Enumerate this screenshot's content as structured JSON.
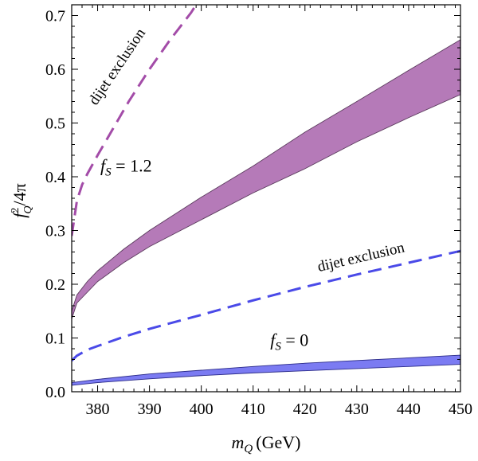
{
  "chart_data": {
    "type": "area",
    "xlabel_var": "m",
    "xlabel_sub": "Q",
    "xlabel_unit": "(GeV)",
    "ylabel_num": "f",
    "ylabel_sup": "2",
    "ylabel_sub": "Q",
    "ylabel_den": "/4π",
    "xlim": [
      375,
      450
    ],
    "ylim": [
      0,
      0.72
    ],
    "xticks": [
      380,
      390,
      400,
      410,
      420,
      430,
      440,
      450
    ],
    "yticks": [
      0.0,
      0.1,
      0.2,
      0.3,
      0.4,
      0.5,
      0.6,
      0.7
    ],
    "ytick_labels": [
      "0.0",
      "0.1",
      "0.2",
      "0.3",
      "0.4",
      "0.5",
      "0.6",
      "0.7"
    ],
    "series": [
      {
        "name": "fS = 1.2 band",
        "kind": "band",
        "fill": "#b57ab8",
        "stroke": "#5a3a5c",
        "x": [
          375,
          376,
          378,
          380,
          385,
          390,
          400,
          410,
          420,
          430,
          440,
          450
        ],
        "lower": [
          0.135,
          0.165,
          0.185,
          0.205,
          0.24,
          0.27,
          0.32,
          0.37,
          0.415,
          0.465,
          0.51,
          0.553
        ],
        "upper": [
          0.15,
          0.18,
          0.205,
          0.225,
          0.265,
          0.3,
          0.362,
          0.42,
          0.483,
          0.54,
          0.598,
          0.655
        ]
      },
      {
        "name": "fS = 0 band",
        "kind": "band",
        "fill": "#7b7bf2",
        "stroke": "#2a2a88",
        "x": [
          375,
          380,
          390,
          400,
          410,
          420,
          430,
          440,
          450
        ],
        "lower": [
          0.012,
          0.017,
          0.024,
          0.03,
          0.035,
          0.039,
          0.043,
          0.047,
          0.051
        ],
        "upper": [
          0.017,
          0.023,
          0.033,
          0.04,
          0.047,
          0.053,
          0.058,
          0.063,
          0.068
        ]
      },
      {
        "name": "dijet exclusion (fS = 1.2)",
        "kind": "dashed",
        "color": "#a34ca8",
        "x": [
          375,
          376,
          377,
          378,
          380,
          383,
          386,
          390,
          394,
          398,
          399
        ],
        "y": [
          0.29,
          0.355,
          0.385,
          0.405,
          0.44,
          0.49,
          0.54,
          0.6,
          0.655,
          0.705,
          0.72
        ]
      },
      {
        "name": "dijet exclusion (fS = 0)",
        "kind": "dashed",
        "color": "#4a4ae8",
        "x": [
          375,
          376,
          378,
          380,
          385,
          390,
          400,
          410,
          420,
          430,
          440,
          450
        ],
        "y": [
          0.058,
          0.067,
          0.078,
          0.085,
          0.102,
          0.117,
          0.143,
          0.17,
          0.195,
          0.218,
          0.24,
          0.262
        ]
      }
    ],
    "annotations": [
      {
        "id": "dijet_upper",
        "text": "dijet exclusion",
        "x": 384.5,
        "y": 0.6,
        "angle": -56,
        "size": "small"
      },
      {
        "id": "dijet_lower",
        "text": "dijet exclusion",
        "x": 431,
        "y": 0.242,
        "angle": -13,
        "size": "small"
      },
      {
        "id": "fs12",
        "prefix": "f",
        "sub": "S",
        "rest": " = 1.2",
        "x": 385.5,
        "y": 0.41
      },
      {
        "id": "fs0",
        "prefix": "f",
        "sub": "S",
        "rest": " = 0",
        "x": 417,
        "y": 0.085
      }
    ]
  }
}
